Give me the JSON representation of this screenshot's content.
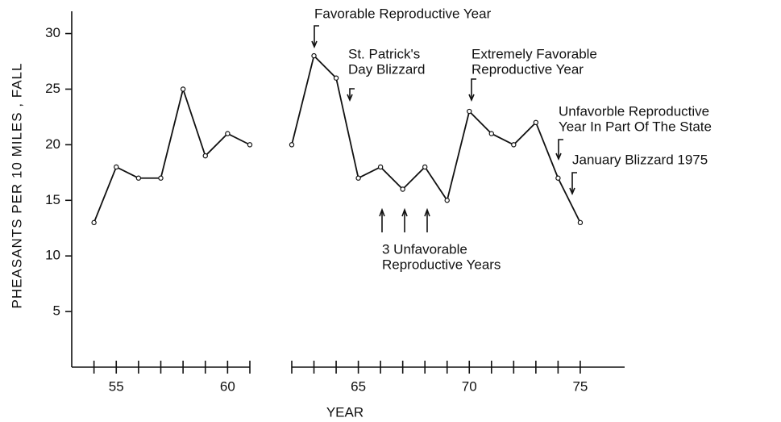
{
  "chart_data": {
    "type": "line",
    "y_label": "PHEASANTS PER 10 MILES , FALL",
    "x_label": "YEAR",
    "x": [
      1954,
      1955,
      1956,
      1957,
      1958,
      1959,
      1960,
      1961,
      1962,
      1963,
      1964,
      1965,
      1966,
      1967,
      1968,
      1969,
      1970,
      1971,
      1972,
      1973,
      1974,
      1975
    ],
    "values": [
      13,
      18,
      17,
      17,
      25,
      19,
      21,
      20,
      20,
      28,
      26,
      17,
      18,
      16,
      18,
      15,
      23,
      21,
      20,
      22,
      17,
      13
    ],
    "color": "#111111",
    "ylim": [
      0,
      32
    ],
    "yticks": [
      5,
      10,
      15,
      20,
      25,
      30
    ],
    "panels": [
      {
        "xlim": [
          1953,
          1961
        ],
        "xticks": [
          {
            "value": 1955,
            "label": "55"
          },
          {
            "value": 1960,
            "label": "60"
          }
        ],
        "xminorticks": [
          1954,
          1956,
          1957,
          1958,
          1959,
          1961
        ]
      },
      {
        "xlim": [
          1962,
          1977
        ],
        "xticks": [
          {
            "value": 1965,
            "label": "65"
          },
          {
            "value": 1970,
            "label": "70"
          },
          {
            "value": 1975,
            "label": "75"
          }
        ],
        "xminorticks": [
          1962,
          1963,
          1964,
          1966,
          1967,
          1968,
          1969,
          1971,
          1972,
          1973,
          1974
        ]
      }
    ],
    "annotations": [
      {
        "lines": [
          "Favorable Reproductive Year"
        ],
        "x": 1963
      },
      {
        "lines": [
          "St. Patrick's",
          "Day Blizzard"
        ],
        "x": 1964
      },
      {
        "lines": [
          "Extremely Favorable",
          "Reproductive Year"
        ],
        "x": 1970
      },
      {
        "lines": [
          "Unfavorble Reproductive",
          "Year In Part Of The State"
        ],
        "x": 1974
      },
      {
        "lines": [
          "January Blizzard 1975"
        ],
        "x": 1975
      },
      {
        "lines": [
          "3 Unfavorable",
          "Reproductive Years"
        ],
        "x": 1966
      }
    ]
  }
}
